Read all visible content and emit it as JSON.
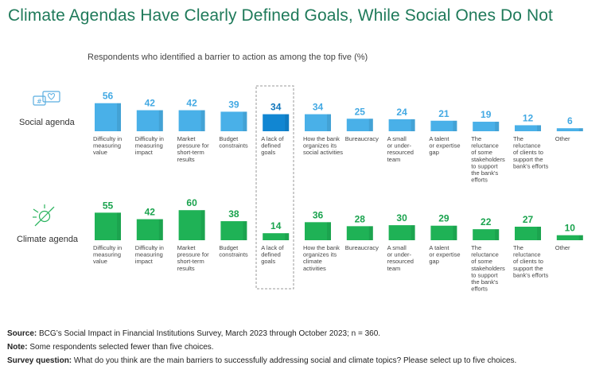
{
  "title": "Climate Agendas Have Clearly Defined Goals, While Social Ones Do Not",
  "subtitle": "Respondents who identified a barrier to action as among the top five (%)",
  "colors": {
    "social": "#49b0e8",
    "social_highlight": "#1186d2",
    "climate": "#1fb256",
    "social_label": "#43a9e3",
    "climate_label": "#1aa34e",
    "title": "#1f7a5a"
  },
  "highlight_index": 4,
  "chart_data": [
    {
      "type": "bar",
      "name": "Social agenda",
      "icon": "social-media-icon",
      "categories": [
        [
          "Difficulty in",
          "measuring",
          "value"
        ],
        [
          "Difficulty in",
          "measuring",
          "impact"
        ],
        [
          "Market",
          "pressure for",
          "short-term",
          "results"
        ],
        [
          "Budget",
          "constraints"
        ],
        [
          "A lack of",
          "defined",
          "goals"
        ],
        [
          "How the bank",
          "organizes its",
          "social activities"
        ],
        [
          "Bureaucracy"
        ],
        [
          "A small",
          "or under-",
          "resourced",
          "team"
        ],
        [
          "A talent",
          "or expertise",
          "gap"
        ],
        [
          "The",
          "reluctance",
          "of some",
          "stakeholders",
          "to support",
          "the bank's",
          "efforts"
        ],
        [
          "The",
          "reluctance",
          "of clients to",
          "support the",
          "bank's efforts"
        ],
        [
          "Other"
        ]
      ],
      "values": [
        56,
        42,
        42,
        39,
        34,
        34,
        25,
        24,
        21,
        19,
        12,
        6
      ],
      "ylabel": "Respondents who identified a barrier to action as among the top five (%)"
    },
    {
      "type": "bar",
      "name": "Climate agenda",
      "icon": "climate-icon",
      "categories": [
        [
          "Difficulty in",
          "measuring",
          "value"
        ],
        [
          "Difficulty in",
          "measuring",
          "impact"
        ],
        [
          "Market",
          "pressure for",
          "short-term",
          "results"
        ],
        [
          "Budget",
          "constraints"
        ],
        [
          "A lack of",
          "defined",
          "goals"
        ],
        [
          "How the bank",
          "organizes its",
          "climate",
          "activities"
        ],
        [
          "Bureaucracy"
        ],
        [
          "A small",
          "or under-",
          "resourced",
          "team"
        ],
        [
          "A talent",
          "or expertise",
          "gap"
        ],
        [
          "The",
          "reluctance",
          "of some",
          "stakeholders",
          "to support",
          "the bank's",
          "efforts"
        ],
        [
          "The",
          "reluctance",
          "of clients to",
          "support the",
          "bank's efforts"
        ],
        [
          "Other"
        ]
      ],
      "values": [
        55,
        42,
        60,
        38,
        14,
        36,
        28,
        30,
        29,
        22,
        27,
        10
      ],
      "ylabel": "Respondents who identified a barrier to action as among the top five (%)"
    }
  ],
  "footer": {
    "source_label": "Source:",
    "source_text": "BCG’s Social Impact in Financial Institutions Survey, March 2023 through October 2023; n = 360.",
    "note_label": "Note:",
    "note_text": "Some respondents selected fewer than five choices.",
    "question_label": "Survey question:",
    "question_text": "What do you think are the main barriers to successfully addressing social and climate topics? Please select up to five choices."
  }
}
